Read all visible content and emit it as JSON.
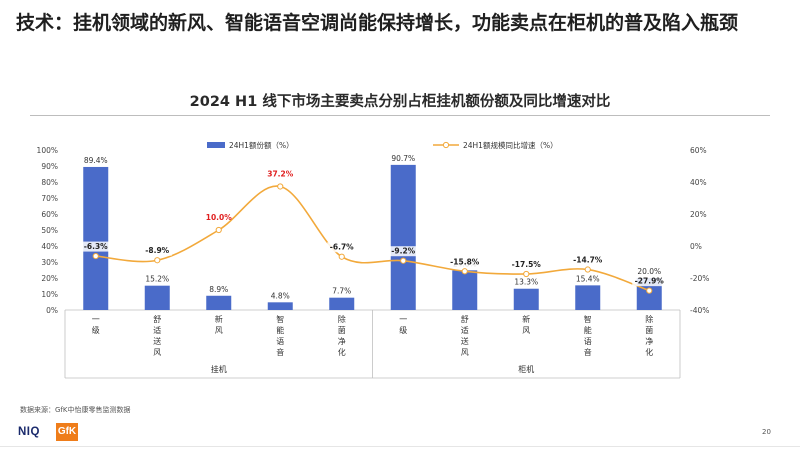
{
  "page": {
    "title": "技术：挂机领域的新风、智能语音空调尚能保持增长，功能卖点在柜机的普及陷入瓶颈",
    "source": "数据来源：GfK中怡康零售监测数据",
    "page_number": "20",
    "logo_left": "NIQ",
    "logo_right": "GfK"
  },
  "chart_data": {
    "type": "bar",
    "title": "2024 H1 线下市场主要卖点分别占柜挂机额份额及同比增速对比",
    "groups": [
      {
        "name": "挂机",
        "categories": [
          "一级",
          "舒适送风",
          "新风",
          "智能语音",
          "除菌净化"
        ]
      },
      {
        "name": "柜机",
        "categories": [
          "一级",
          "舒适送风",
          "新风",
          "智能语音",
          "除菌净化"
        ]
      }
    ],
    "categories": [
      "一级",
      "舒适送风",
      "新风",
      "智能语音",
      "除菌净化",
      "一级",
      "舒适送风",
      "新风",
      "智能语音",
      "除菌净化"
    ],
    "series": [
      {
        "name": "24H1额份额（%）",
        "type": "bar",
        "axis": "left",
        "color": "#4a6bc9",
        "values": [
          89.4,
          15.2,
          8.9,
          4.8,
          7.7,
          90.7,
          24.8,
          13.3,
          15.4,
          20.0
        ],
        "labels": [
          "89.4%",
          "15.2%",
          "8.9%",
          "4.8%",
          "7.7%",
          "90.7%",
          "24.8%",
          "13.3%",
          "15.4%",
          "20.0%"
        ]
      },
      {
        "name": "24H1额规模同比增速（%）",
        "type": "line",
        "axis": "right",
        "color": "#f2a93b",
        "values": [
          -6.3,
          -8.9,
          10.0,
          37.2,
          -6.7,
          -9.2,
          -15.8,
          -17.5,
          -14.7,
          -27.9
        ],
        "labels": [
          "-6.3%",
          "-8.9%",
          "10.0%",
          "37.2%",
          "-6.7%",
          "-9.2%",
          "-15.8%",
          "-17.5%",
          "-14.7%",
          "-27.9%"
        ],
        "highlight_color": "#e02020",
        "highlight_indices": [
          2,
          3
        ]
      }
    ],
    "y_left": {
      "min": 0,
      "max": 100,
      "ticks": [
        "0%",
        "10%",
        "20%",
        "30%",
        "40%",
        "50%",
        "60%",
        "70%",
        "80%",
        "90%",
        "100%"
      ]
    },
    "y_right": {
      "min": -40,
      "max": 60,
      "ticks": [
        "-40%",
        "-20%",
        "0%",
        "20%",
        "40%",
        "60%"
      ]
    },
    "grid": false,
    "legend_position": "top"
  }
}
